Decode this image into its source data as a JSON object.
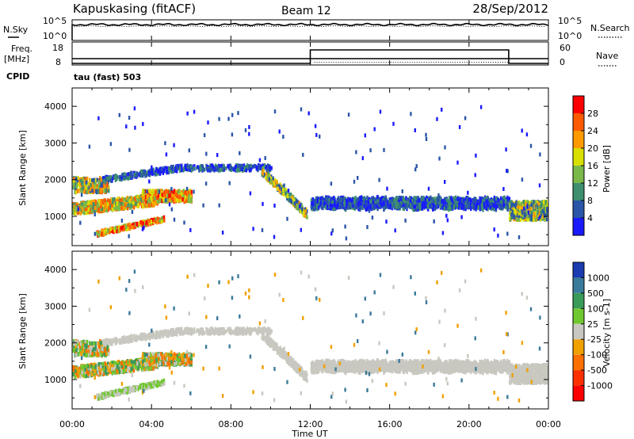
{
  "header": {
    "station": "Kapuskasing (fitACF)",
    "beam": "Beam 12",
    "date": "28/Sep/2012"
  },
  "chart_data": [
    {
      "type": "line",
      "panel": "noise",
      "left_label": "N.Sky",
      "right_label": "N.Search",
      "left_ticks": [
        "10^5",
        "10^0"
      ],
      "right_ticks": [
        "10^5",
        "10^0"
      ],
      "sky_level_approx": "10^5",
      "search_level_approx": "10^5"
    },
    {
      "type": "line",
      "panel": "frequency",
      "left_label_top": "Freq.",
      "left_label_unit": "[MHz]",
      "cpid_label": "CPID",
      "right_label": "Nave",
      "left_ticks": [
        "18",
        "8"
      ],
      "right_ticks": [
        "60",
        "0"
      ],
      "freq_mhz": [
        [
          0,
          8
        ],
        [
          24,
          8
        ]
      ],
      "nave": [
        [
          0,
          0
        ],
        [
          12,
          0
        ],
        [
          12,
          60
        ],
        [
          22,
          60
        ],
        [
          22,
          0
        ],
        [
          24,
          0
        ]
      ]
    },
    {
      "type": "heatmap",
      "panel": "power",
      "cpid_text": "tau (fast) 503",
      "ylabel": "Slant Range [km]",
      "y_ticks": [
        1000,
        2000,
        3000,
        4000
      ],
      "ylim": [
        200,
        4500
      ],
      "xlim": [
        0,
        24
      ],
      "colorbar_label": "Power [dB]",
      "colorbar_ticks": [
        4,
        8,
        12,
        16,
        20,
        24,
        28
      ],
      "colorbar_range": [
        0,
        32
      ],
      "colors": [
        "#1a1aff",
        "#2a55a8",
        "#3e8f6e",
        "#7ab84a",
        "#d9e000",
        "#ff9a00",
        "#ff5a00",
        "#ff0000"
      ]
    },
    {
      "type": "heatmap",
      "panel": "velocity",
      "ylabel": "Slant Range [km]",
      "y_ticks": [
        1000,
        2000,
        3000,
        4000
      ],
      "ylim": [
        200,
        4500
      ],
      "xlim": [
        0,
        24
      ],
      "colorbar_label": "Velocity [m s-1]",
      "colorbar_ticks": [
        "1000",
        "500",
        "100",
        "25",
        "-25",
        "-100",
        "-500",
        "-1000"
      ],
      "colors": [
        "#1a3cb0",
        "#3a7a9a",
        "#3a9a5a",
        "#70c830",
        "#c8c8c0",
        "#f0a000",
        "#ff7000",
        "#ff3000",
        "#ff0000"
      ]
    }
  ],
  "x_axis": {
    "label": "Time UT",
    "ticks": [
      "00:00",
      "04:00",
      "08:00",
      "12:00",
      "16:00",
      "20:00",
      "00:00"
    ]
  }
}
